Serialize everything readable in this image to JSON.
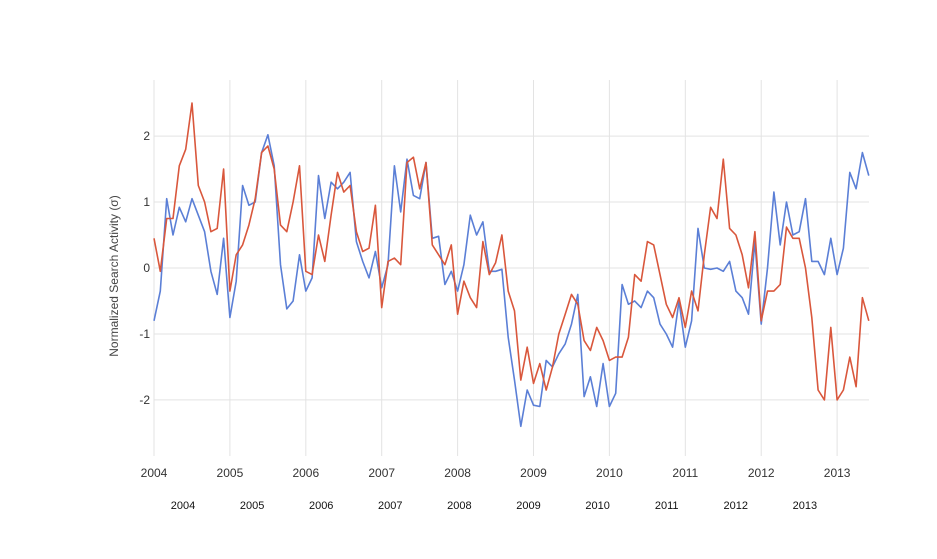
{
  "chart_data": {
    "type": "line",
    "title": "",
    "ylabel": "Normalized Search Activity (σ)",
    "xlabel": "",
    "xlim": [
      2004.0,
      2013.42
    ],
    "ylim": [
      -2.85,
      2.85
    ],
    "grid": true,
    "legend": "none",
    "x_ticks": [
      "2004",
      "2005",
      "2006",
      "2007",
      "2008",
      "2009",
      "2010",
      "2011",
      "2012",
      "2013"
    ],
    "secondary_x_labels": [
      "2004",
      "2005",
      "2006",
      "2007",
      "2008",
      "2009",
      "2010",
      "2011",
      "2012",
      "2013"
    ],
    "y_ticks": [
      {
        "value": 2,
        "label": "2"
      },
      {
        "value": 1,
        "label": "1"
      },
      {
        "value": 0,
        "label": "0"
      },
      {
        "value": -1,
        "label": "-1"
      },
      {
        "value": -2,
        "label": "-2"
      }
    ],
    "series": [
      {
        "color": "#5b7fd6",
        "points": [
          [
            2004.0,
            -0.8
          ],
          [
            2004.083,
            -0.35
          ],
          [
            2004.167,
            1.05
          ],
          [
            2004.25,
            0.5
          ],
          [
            2004.333,
            0.92
          ],
          [
            2004.417,
            0.7
          ],
          [
            2004.5,
            1.05
          ],
          [
            2004.583,
            0.8
          ],
          [
            2004.667,
            0.55
          ],
          [
            2004.75,
            -0.05
          ],
          [
            2004.833,
            -0.4
          ],
          [
            2004.917,
            0.45
          ],
          [
            2005.0,
            -0.75
          ],
          [
            2005.083,
            -0.2
          ],
          [
            2005.167,
            1.25
          ],
          [
            2005.25,
            0.95
          ],
          [
            2005.333,
            1.0
          ],
          [
            2005.417,
            1.75
          ],
          [
            2005.5,
            2.02
          ],
          [
            2005.583,
            1.55
          ],
          [
            2005.667,
            0.05
          ],
          [
            2005.75,
            -0.62
          ],
          [
            2005.833,
            -0.5
          ],
          [
            2005.917,
            0.2
          ],
          [
            2006.0,
            -0.35
          ],
          [
            2006.083,
            -0.15
          ],
          [
            2006.167,
            1.4
          ],
          [
            2006.25,
            0.75
          ],
          [
            2006.333,
            1.3
          ],
          [
            2006.417,
            1.2
          ],
          [
            2006.5,
            1.3
          ],
          [
            2006.583,
            1.45
          ],
          [
            2006.667,
            0.4
          ],
          [
            2006.75,
            0.1
          ],
          [
            2006.833,
            -0.15
          ],
          [
            2006.917,
            0.25
          ],
          [
            2007.0,
            -0.3
          ],
          [
            2007.083,
            0.05
          ],
          [
            2007.167,
            1.55
          ],
          [
            2007.25,
            0.85
          ],
          [
            2007.333,
            1.65
          ],
          [
            2007.417,
            1.1
          ],
          [
            2007.5,
            1.05
          ],
          [
            2007.583,
            1.6
          ],
          [
            2007.667,
            0.45
          ],
          [
            2007.75,
            0.48
          ],
          [
            2007.833,
            -0.25
          ],
          [
            2007.917,
            -0.05
          ],
          [
            2008.0,
            -0.35
          ],
          [
            2008.083,
            0.05
          ],
          [
            2008.167,
            0.8
          ],
          [
            2008.25,
            0.5
          ],
          [
            2008.333,
            0.7
          ],
          [
            2008.417,
            -0.05
          ],
          [
            2008.5,
            -0.05
          ],
          [
            2008.583,
            -0.02
          ],
          [
            2008.667,
            -1.05
          ],
          [
            2008.75,
            -1.7
          ],
          [
            2008.833,
            -2.4
          ],
          [
            2008.917,
            -1.85
          ],
          [
            2009.0,
            -2.08
          ],
          [
            2009.083,
            -2.1
          ],
          [
            2009.167,
            -1.4
          ],
          [
            2009.25,
            -1.5
          ],
          [
            2009.333,
            -1.3
          ],
          [
            2009.417,
            -1.15
          ],
          [
            2009.5,
            -0.85
          ],
          [
            2009.583,
            -0.4
          ],
          [
            2009.667,
            -1.95
          ],
          [
            2009.75,
            -1.65
          ],
          [
            2009.833,
            -2.1
          ],
          [
            2009.917,
            -1.45
          ],
          [
            2010.0,
            -2.1
          ],
          [
            2010.083,
            -1.9
          ],
          [
            2010.167,
            -0.25
          ],
          [
            2010.25,
            -0.55
          ],
          [
            2010.333,
            -0.5
          ],
          [
            2010.417,
            -0.6
          ],
          [
            2010.5,
            -0.35
          ],
          [
            2010.583,
            -0.45
          ],
          [
            2010.667,
            -0.85
          ],
          [
            2010.75,
            -1.0
          ],
          [
            2010.833,
            -1.2
          ],
          [
            2010.917,
            -0.5
          ],
          [
            2011.0,
            -1.2
          ],
          [
            2011.083,
            -0.8
          ],
          [
            2011.167,
            0.6
          ],
          [
            2011.25,
            0.0
          ],
          [
            2011.333,
            -0.02
          ],
          [
            2011.417,
            0.0
          ],
          [
            2011.5,
            -0.05
          ],
          [
            2011.583,
            0.1
          ],
          [
            2011.667,
            -0.35
          ],
          [
            2011.75,
            -0.45
          ],
          [
            2011.833,
            -0.7
          ],
          [
            2011.917,
            0.4
          ],
          [
            2012.0,
            -0.85
          ],
          [
            2012.083,
            0.0
          ],
          [
            2012.167,
            1.15
          ],
          [
            2012.25,
            0.35
          ],
          [
            2012.333,
            1.0
          ],
          [
            2012.417,
            0.5
          ],
          [
            2012.5,
            0.55
          ],
          [
            2012.583,
            1.05
          ],
          [
            2012.667,
            0.1
          ],
          [
            2012.75,
            0.1
          ],
          [
            2012.833,
            -0.1
          ],
          [
            2012.917,
            0.45
          ],
          [
            2013.0,
            -0.1
          ],
          [
            2013.083,
            0.3
          ],
          [
            2013.167,
            1.45
          ],
          [
            2013.25,
            1.2
          ],
          [
            2013.333,
            1.75
          ],
          [
            2013.417,
            1.4
          ]
        ]
      },
      {
        "color": "#d9573c",
        "points": [
          [
            2004.0,
            0.45
          ],
          [
            2004.083,
            -0.05
          ],
          [
            2004.167,
            0.75
          ],
          [
            2004.25,
            0.75
          ],
          [
            2004.333,
            1.55
          ],
          [
            2004.417,
            1.8
          ],
          [
            2004.5,
            2.5
          ],
          [
            2004.583,
            1.25
          ],
          [
            2004.667,
            1.0
          ],
          [
            2004.75,
            0.55
          ],
          [
            2004.833,
            0.6
          ],
          [
            2004.917,
            1.5
          ],
          [
            2005.0,
            -0.35
          ],
          [
            2005.083,
            0.2
          ],
          [
            2005.167,
            0.35
          ],
          [
            2005.25,
            0.65
          ],
          [
            2005.333,
            1.05
          ],
          [
            2005.417,
            1.75
          ],
          [
            2005.5,
            1.85
          ],
          [
            2005.583,
            1.5
          ],
          [
            2005.667,
            0.65
          ],
          [
            2005.75,
            0.55
          ],
          [
            2005.833,
            1.0
          ],
          [
            2005.917,
            1.55
          ],
          [
            2006.0,
            -0.05
          ],
          [
            2006.083,
            -0.1
          ],
          [
            2006.167,
            0.5
          ],
          [
            2006.25,
            0.1
          ],
          [
            2006.333,
            0.8
          ],
          [
            2006.417,
            1.45
          ],
          [
            2006.5,
            1.15
          ],
          [
            2006.583,
            1.25
          ],
          [
            2006.667,
            0.55
          ],
          [
            2006.75,
            0.25
          ],
          [
            2006.833,
            0.3
          ],
          [
            2006.917,
            0.95
          ],
          [
            2007.0,
            -0.6
          ],
          [
            2007.083,
            0.1
          ],
          [
            2007.167,
            0.15
          ],
          [
            2007.25,
            0.05
          ],
          [
            2007.333,
            1.6
          ],
          [
            2007.417,
            1.68
          ],
          [
            2007.5,
            1.2
          ],
          [
            2007.583,
            1.6
          ],
          [
            2007.667,
            0.35
          ],
          [
            2007.75,
            0.2
          ],
          [
            2007.833,
            0.05
          ],
          [
            2007.917,
            0.35
          ],
          [
            2008.0,
            -0.7
          ],
          [
            2008.083,
            -0.2
          ],
          [
            2008.167,
            -0.45
          ],
          [
            2008.25,
            -0.6
          ],
          [
            2008.333,
            0.4
          ],
          [
            2008.417,
            -0.1
          ],
          [
            2008.5,
            0.08
          ],
          [
            2008.583,
            0.5
          ],
          [
            2008.667,
            -0.35
          ],
          [
            2008.75,
            -0.65
          ],
          [
            2008.833,
            -1.7
          ],
          [
            2008.917,
            -1.2
          ],
          [
            2009.0,
            -1.75
          ],
          [
            2009.083,
            -1.45
          ],
          [
            2009.167,
            -1.85
          ],
          [
            2009.25,
            -1.5
          ],
          [
            2009.333,
            -1.0
          ],
          [
            2009.417,
            -0.7
          ],
          [
            2009.5,
            -0.4
          ],
          [
            2009.583,
            -0.55
          ],
          [
            2009.667,
            -1.1
          ],
          [
            2009.75,
            -1.25
          ],
          [
            2009.833,
            -0.9
          ],
          [
            2009.917,
            -1.1
          ],
          [
            2010.0,
            -1.4
          ],
          [
            2010.083,
            -1.35
          ],
          [
            2010.167,
            -1.35
          ],
          [
            2010.25,
            -1.05
          ],
          [
            2010.333,
            -0.1
          ],
          [
            2010.417,
            -0.2
          ],
          [
            2010.5,
            0.4
          ],
          [
            2010.583,
            0.35
          ],
          [
            2010.667,
            -0.1
          ],
          [
            2010.75,
            -0.55
          ],
          [
            2010.833,
            -0.75
          ],
          [
            2010.917,
            -0.45
          ],
          [
            2011.0,
            -0.9
          ],
          [
            2011.083,
            -0.35
          ],
          [
            2011.167,
            -0.65
          ],
          [
            2011.25,
            0.2
          ],
          [
            2011.333,
            0.92
          ],
          [
            2011.417,
            0.75
          ],
          [
            2011.5,
            1.65
          ],
          [
            2011.583,
            0.6
          ],
          [
            2011.667,
            0.5
          ],
          [
            2011.75,
            0.2
          ],
          [
            2011.833,
            -0.3
          ],
          [
            2011.917,
            0.55
          ],
          [
            2012.0,
            -0.8
          ],
          [
            2012.083,
            -0.35
          ],
          [
            2012.167,
            -0.35
          ],
          [
            2012.25,
            -0.25
          ],
          [
            2012.333,
            0.62
          ],
          [
            2012.417,
            0.45
          ],
          [
            2012.5,
            0.45
          ],
          [
            2012.583,
            0.0
          ],
          [
            2012.667,
            -0.75
          ],
          [
            2012.75,
            -1.85
          ],
          [
            2012.833,
            -2.0
          ],
          [
            2012.917,
            -0.9
          ],
          [
            2013.0,
            -2.0
          ],
          [
            2013.083,
            -1.85
          ],
          [
            2013.167,
            -1.35
          ],
          [
            2013.25,
            -1.8
          ],
          [
            2013.333,
            -0.45
          ],
          [
            2013.417,
            -0.8
          ]
        ]
      }
    ]
  }
}
